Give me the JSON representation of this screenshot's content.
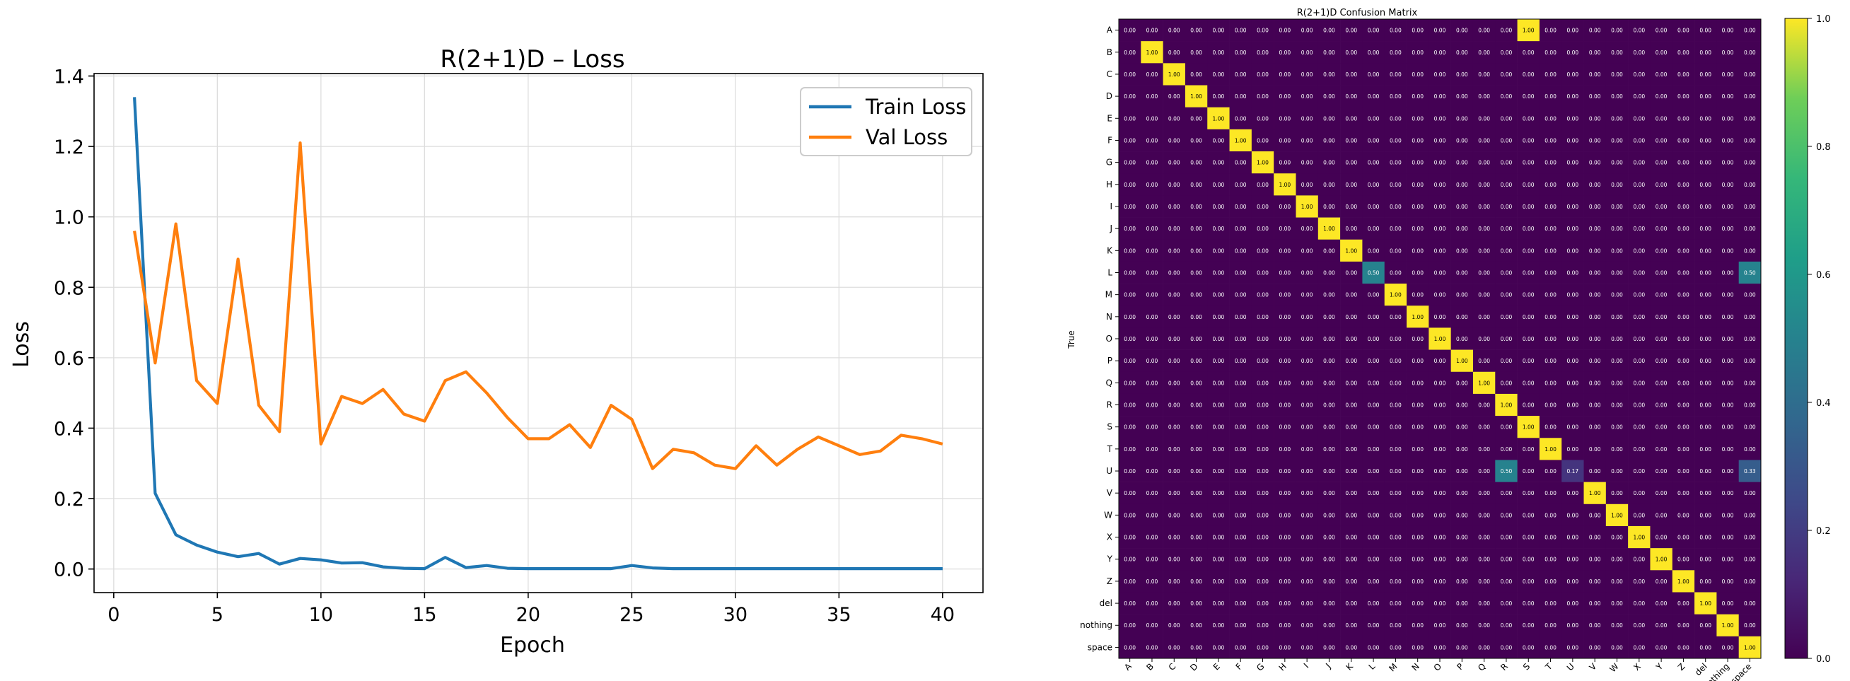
{
  "charts": [
    {
      "type": "line",
      "title": "R(2+1)D – Loss",
      "xlabel": "Epoch",
      "ylabel": "Loss",
      "xlim": [
        -0.95,
        41.95
      ],
      "ylim": [
        -0.067,
        1.407
      ],
      "xticks": [
        0,
        5,
        10,
        15,
        20,
        25,
        30,
        35,
        40
      ],
      "yticks": [
        0.0,
        0.2,
        0.4,
        0.6,
        0.8,
        1.0,
        1.2,
        1.4
      ],
      "ytick_labels": [
        "0.0",
        "0.2",
        "0.4",
        "0.6",
        "0.8",
        "1.0",
        "1.2",
        "1.4"
      ],
      "grid": true,
      "legend_position": "top-right",
      "x": [
        1,
        2,
        3,
        4,
        5,
        6,
        7,
        8,
        9,
        10,
        11,
        12,
        13,
        14,
        15,
        16,
        17,
        18,
        19,
        20,
        21,
        22,
        23,
        24,
        25,
        26,
        27,
        28,
        29,
        30,
        31,
        32,
        33,
        34,
        35,
        36,
        37,
        38,
        39,
        40
      ],
      "series": [
        {
          "name": "Train Loss",
          "color": "#1f77b4",
          "values": [
            1.34,
            0.215,
            0.097,
            0.068,
            0.048,
            0.035,
            0.044,
            0.014,
            0.03,
            0.026,
            0.017,
            0.018,
            0.006,
            0.002,
            0.001,
            0.033,
            0.004,
            0.01,
            0.002,
            0.001,
            0.001,
            0.001,
            0.001,
            0.001,
            0.01,
            0.003,
            0.001,
            0.001,
            0.001,
            0.001,
            0.001,
            0.001,
            0.001,
            0.001,
            0.001,
            0.001,
            0.001,
            0.001,
            0.001,
            0.001
          ]
        },
        {
          "name": "Val Loss",
          "color": "#ff7f0e",
          "values": [
            0.96,
            0.585,
            0.98,
            0.535,
            0.47,
            0.88,
            0.465,
            0.39,
            1.21,
            0.355,
            0.49,
            0.47,
            0.51,
            0.44,
            0.42,
            0.535,
            0.56,
            0.5,
            0.43,
            0.37,
            0.37,
            0.41,
            0.345,
            0.465,
            0.425,
            0.285,
            0.34,
            0.33,
            0.295,
            0.285,
            0.35,
            0.295,
            0.34,
            0.375,
            0.35,
            0.325,
            0.335,
            0.38,
            0.37,
            0.355
          ]
        }
      ]
    },
    {
      "type": "heatmap",
      "title": "R(2+1)D Confusion Matrix",
      "ylabel": "True",
      "labels": [
        "A",
        "B",
        "C",
        "D",
        "E",
        "F",
        "G",
        "H",
        "I",
        "J",
        "K",
        "L",
        "M",
        "N",
        "O",
        "P",
        "Q",
        "R",
        "S",
        "T",
        "U",
        "V",
        "W",
        "X",
        "Y",
        "Z",
        "del",
        "nothing",
        "space"
      ],
      "value_format": "0.00",
      "off_diagonal": [
        {
          "row": 0,
          "col": 18,
          "value": 1.0
        },
        {
          "row": 11,
          "col": 11,
          "value": 0.5
        },
        {
          "row": 11,
          "col": 28,
          "value": 0.5
        },
        {
          "row": 20,
          "col": 17,
          "value": 0.5
        },
        {
          "row": 20,
          "col": 20,
          "value": 0.17
        },
        {
          "row": 20,
          "col": 28,
          "value": 0.33
        }
      ],
      "diagonal_value": 1.0,
      "diagonal_exceptions": [
        0,
        11,
        20
      ],
      "colorbar": {
        "ticks": [
          0.0,
          0.2,
          0.4,
          0.6,
          0.8,
          1.0
        ],
        "tick_labels": [
          "0.0",
          "0.2",
          "0.4",
          "0.6",
          "0.8",
          "1.0"
        ]
      }
    }
  ]
}
